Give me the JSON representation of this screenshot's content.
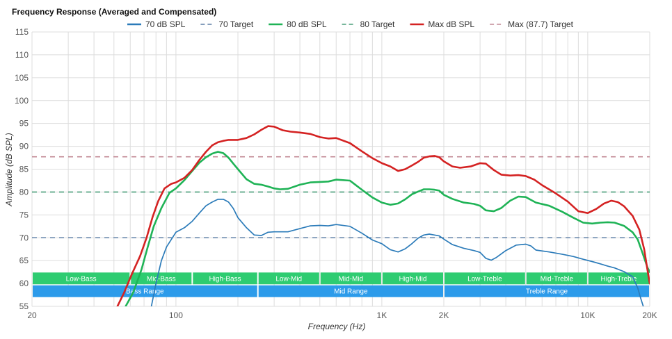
{
  "chart_data": {
    "type": "line",
    "title": "Frequency Response (Averaged and Compensated)",
    "xlabel": "Frequency (Hz)",
    "ylabel": "Amplitude (dB SPL)",
    "x_scale": "log",
    "xlim": [
      20,
      20000
    ],
    "ylim": [
      55,
      115
    ],
    "x_ticks": [
      {
        "value": 20,
        "label": "20"
      },
      {
        "value": 100,
        "label": "100"
      },
      {
        "value": 1000,
        "label": "1K"
      },
      {
        "value": 2000,
        "label": "2K"
      },
      {
        "value": 10000,
        "label": "10K"
      },
      {
        "value": 20000,
        "label": "20K"
      }
    ],
    "x_minor_gridlines": [
      30,
      40,
      50,
      60,
      70,
      80,
      90,
      200,
      300,
      400,
      500,
      600,
      700,
      800,
      900,
      3000,
      4000,
      5000,
      6000,
      7000,
      8000,
      9000
    ],
    "y_ticks": [
      55,
      60,
      65,
      70,
      75,
      80,
      85,
      90,
      95,
      100,
      105,
      110,
      115
    ],
    "grid": true,
    "legend_position": "top",
    "series": [
      {
        "name": "70 dB SPL",
        "style": "solid",
        "color": "#2b7bb9",
        "points": [
          [
            76,
            55
          ],
          [
            80,
            60
          ],
          [
            85,
            65
          ],
          [
            90,
            68
          ],
          [
            100,
            71.2
          ],
          [
            110,
            72.2
          ],
          [
            120,
            73.6
          ],
          [
            130,
            75.4
          ],
          [
            140,
            77
          ],
          [
            150,
            77.8
          ],
          [
            160,
            78.4
          ],
          [
            170,
            78.4
          ],
          [
            180,
            77.8
          ],
          [
            190,
            76.4
          ],
          [
            200,
            74.4
          ],
          [
            220,
            72.2
          ],
          [
            240,
            70.6
          ],
          [
            260,
            70.5
          ],
          [
            280,
            71.2
          ],
          [
            300,
            71.3
          ],
          [
            350,
            71.3
          ],
          [
            400,
            72
          ],
          [
            450,
            72.6
          ],
          [
            500,
            72.7
          ],
          [
            550,
            72.6
          ],
          [
            600,
            72.9
          ],
          [
            700,
            72.5
          ],
          [
            800,
            71
          ],
          [
            900,
            69.5
          ],
          [
            1000,
            68.7
          ],
          [
            1100,
            67.4
          ],
          [
            1200,
            66.9
          ],
          [
            1300,
            67.6
          ],
          [
            1400,
            68.7
          ],
          [
            1500,
            69.9
          ],
          [
            1600,
            70.6
          ],
          [
            1700,
            70.8
          ],
          [
            1800,
            70.6
          ],
          [
            1900,
            70.4
          ],
          [
            2000,
            69.7
          ],
          [
            2200,
            68.5
          ],
          [
            2500,
            67.7
          ],
          [
            2800,
            67.2
          ],
          [
            3000,
            66.8
          ],
          [
            3200,
            65.5
          ],
          [
            3400,
            65.1
          ],
          [
            3600,
            65.7
          ],
          [
            4000,
            67.2
          ],
          [
            4500,
            68.4
          ],
          [
            5000,
            68.6
          ],
          [
            5300,
            68.2
          ],
          [
            5600,
            67.3
          ],
          [
            6500,
            66.9
          ],
          [
            7500,
            66.4
          ],
          [
            8500,
            65.9
          ],
          [
            9500,
            65.3
          ],
          [
            10500,
            64.8
          ],
          [
            11500,
            64.3
          ],
          [
            12500,
            63.8
          ],
          [
            13500,
            63.4
          ],
          [
            15000,
            62.6
          ],
          [
            16500,
            61.5
          ],
          [
            17500,
            59
          ],
          [
            18000,
            57
          ],
          [
            18600,
            55
          ]
        ]
      },
      {
        "name": "70 Target",
        "style": "dashed",
        "color": "#5e7fa6",
        "value": 70
      },
      {
        "name": "80 dB SPL",
        "style": "solid",
        "color": "#1fb356",
        "points": [
          [
            57,
            55
          ],
          [
            62,
            58
          ],
          [
            68,
            63
          ],
          [
            73,
            68
          ],
          [
            78,
            72.5
          ],
          [
            85,
            76.5
          ],
          [
            93,
            79.8
          ],
          [
            100,
            80.8
          ],
          [
            110,
            82.6
          ],
          [
            120,
            84.6
          ],
          [
            130,
            86.4
          ],
          [
            140,
            87.6
          ],
          [
            150,
            88.4
          ],
          [
            160,
            88.8
          ],
          [
            170,
            88.5
          ],
          [
            180,
            87.5
          ],
          [
            190,
            86.2
          ],
          [
            200,
            85
          ],
          [
            220,
            82.8
          ],
          [
            240,
            81.8
          ],
          [
            260,
            81.6
          ],
          [
            280,
            81.2
          ],
          [
            300,
            80.8
          ],
          [
            320,
            80.6
          ],
          [
            350,
            80.7
          ],
          [
            400,
            81.6
          ],
          [
            450,
            82.1
          ],
          [
            500,
            82.2
          ],
          [
            550,
            82.3
          ],
          [
            600,
            82.7
          ],
          [
            700,
            82.5
          ],
          [
            800,
            80.5
          ],
          [
            900,
            78.8
          ],
          [
            1000,
            77.7
          ],
          [
            1100,
            77.2
          ],
          [
            1200,
            77.5
          ],
          [
            1300,
            78.4
          ],
          [
            1400,
            79.5
          ],
          [
            1500,
            80.1
          ],
          [
            1600,
            80.6
          ],
          [
            1700,
            80.6
          ],
          [
            1800,
            80.5
          ],
          [
            1900,
            80.3
          ],
          [
            2000,
            79.4
          ],
          [
            2200,
            78.5
          ],
          [
            2500,
            77.7
          ],
          [
            2800,
            77.4
          ],
          [
            3000,
            77
          ],
          [
            3200,
            76
          ],
          [
            3500,
            75.8
          ],
          [
            3800,
            76.5
          ],
          [
            4200,
            78.1
          ],
          [
            4600,
            79
          ],
          [
            5000,
            78.9
          ],
          [
            5600,
            77.7
          ],
          [
            6500,
            77
          ],
          [
            7500,
            75.7
          ],
          [
            8500,
            74.4
          ],
          [
            9500,
            73.3
          ],
          [
            10500,
            73.1
          ],
          [
            11500,
            73.3
          ],
          [
            12500,
            73.4
          ],
          [
            13500,
            73.3
          ],
          [
            15000,
            72.6
          ],
          [
            16500,
            71.2
          ],
          [
            17500,
            69.6
          ],
          [
            18500,
            66.5
          ],
          [
            19500,
            63.5
          ],
          [
            20000,
            62.5
          ]
        ]
      },
      {
        "name": "80 Target",
        "style": "dashed",
        "color": "#4a9e7a",
        "value": 80
      },
      {
        "name": "Max dB SPL",
        "style": "solid",
        "color": "#d42222",
        "points": [
          [
            52,
            55
          ],
          [
            56,
            58
          ],
          [
            61,
            62
          ],
          [
            67,
            66
          ],
          [
            72,
            70
          ],
          [
            77,
            74.5
          ],
          [
            82,
            78
          ],
          [
            88,
            80.8
          ],
          [
            95,
            81.8
          ],
          [
            100,
            82.1
          ],
          [
            110,
            83.1
          ],
          [
            120,
            84.8
          ],
          [
            130,
            87
          ],
          [
            140,
            88.8
          ],
          [
            150,
            90.2
          ],
          [
            160,
            90.9
          ],
          [
            170,
            91.2
          ],
          [
            180,
            91.4
          ],
          [
            200,
            91.4
          ],
          [
            220,
            91.8
          ],
          [
            240,
            92.6
          ],
          [
            260,
            93.6
          ],
          [
            280,
            94.4
          ],
          [
            300,
            94.3
          ],
          [
            330,
            93.5
          ],
          [
            360,
            93.2
          ],
          [
            400,
            93
          ],
          [
            450,
            92.7
          ],
          [
            500,
            92
          ],
          [
            550,
            91.7
          ],
          [
            600,
            91.8
          ],
          [
            700,
            90.7
          ],
          [
            800,
            88.9
          ],
          [
            900,
            87.4
          ],
          [
            1000,
            86.3
          ],
          [
            1100,
            85.6
          ],
          [
            1200,
            84.6
          ],
          [
            1300,
            85
          ],
          [
            1400,
            85.8
          ],
          [
            1500,
            86.6
          ],
          [
            1600,
            87.5
          ],
          [
            1700,
            87.8
          ],
          [
            1800,
            87.9
          ],
          [
            1900,
            87.6
          ],
          [
            2000,
            86.7
          ],
          [
            2200,
            85.6
          ],
          [
            2400,
            85.3
          ],
          [
            2700,
            85.6
          ],
          [
            3000,
            86.3
          ],
          [
            3200,
            86.2
          ],
          [
            3500,
            84.8
          ],
          [
            3800,
            83.8
          ],
          [
            4200,
            83.6
          ],
          [
            4600,
            83.7
          ],
          [
            5000,
            83.5
          ],
          [
            5500,
            82.7
          ],
          [
            6000,
            81.5
          ],
          [
            7000,
            79.7
          ],
          [
            8000,
            77.9
          ],
          [
            9000,
            75.8
          ],
          [
            10000,
            75.4
          ],
          [
            11000,
            76.3
          ],
          [
            12000,
            77.5
          ],
          [
            13000,
            78.1
          ],
          [
            14000,
            77.8
          ],
          [
            15000,
            76.9
          ],
          [
            16500,
            74.8
          ],
          [
            17800,
            71.8
          ],
          [
            18800,
            67.5
          ],
          [
            19500,
            63
          ],
          [
            20000,
            60
          ]
        ]
      },
      {
        "name": "Max (87.7) Target",
        "style": "dashed",
        "color": "#c28a95",
        "value": 87.7
      }
    ],
    "bands": [
      {
        "row": 1,
        "label": "Low-Bass",
        "from": 20,
        "to": 60
      },
      {
        "row": 1,
        "label": "Mid-Bass",
        "from": 60,
        "to": 120
      },
      {
        "row": 1,
        "label": "High-Bass",
        "from": 120,
        "to": 250
      },
      {
        "row": 1,
        "label": "Low-Mid",
        "from": 250,
        "to": 500
      },
      {
        "row": 1,
        "label": "Mid-Mid",
        "from": 500,
        "to": 1000
      },
      {
        "row": 1,
        "label": "High-Mid",
        "from": 1000,
        "to": 2000
      },
      {
        "row": 1,
        "label": "Low-Treble",
        "from": 2000,
        "to": 5000
      },
      {
        "row": 1,
        "label": "Mid-Treble",
        "from": 5000,
        "to": 10000
      },
      {
        "row": 1,
        "label": "High-Treble",
        "from": 10000,
        "to": 20000
      },
      {
        "row": 2,
        "label": "Bass Range",
        "from": 20,
        "to": 250
      },
      {
        "row": 2,
        "label": "Mid Range",
        "from": 250,
        "to": 2000
      },
      {
        "row": 2,
        "label": "Treble Range",
        "from": 2000,
        "to": 20000
      }
    ],
    "colors": {
      "band_row1": "#2ecc71",
      "band_row2": "#2c9bea"
    }
  }
}
